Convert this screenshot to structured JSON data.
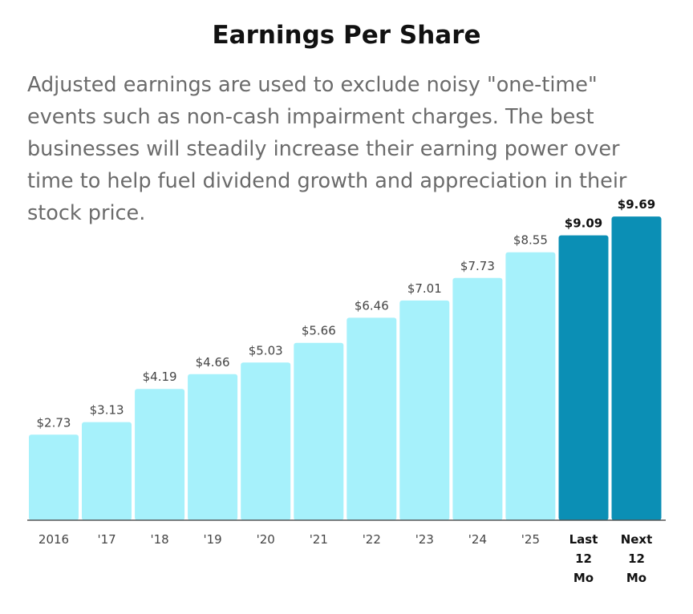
{
  "header": {
    "title": "Earnings Per Share",
    "description": "Adjusted earnings are used to exclude noisy \"one-time\" events such as non-cash impairment charges. The best businesses will steadily increase their earning power over time to help fuel dividend growth and appreciation in their stock price."
  },
  "chart_data": {
    "type": "bar",
    "title": "Earnings Per Share",
    "xlabel": "",
    "ylabel": "",
    "ylim": [
      0,
      10
    ],
    "grid": false,
    "categories": [
      "2016",
      "'17",
      "'18",
      "'19",
      "'20",
      "'21",
      "'22",
      "'23",
      "'24",
      "'25",
      "Last 12 Mo",
      "Next 12 Mo"
    ],
    "values": [
      2.73,
      3.13,
      4.19,
      4.66,
      5.03,
      5.66,
      6.46,
      7.01,
      7.73,
      8.55,
      9.09,
      9.69
    ],
    "data_labels": [
      "$2.73",
      "$3.13",
      "$4.19",
      "$4.66",
      "$5.03",
      "$5.66",
      "$6.46",
      "$7.01",
      "$7.73",
      "$8.55",
      "$9.09",
      "$9.69"
    ],
    "highlighted": [
      false,
      false,
      false,
      false,
      false,
      false,
      false,
      false,
      false,
      false,
      true,
      true
    ],
    "colors": {
      "normal": "#a6f1fb",
      "highlight": "#0b8fb5",
      "axis": "#555555"
    }
  }
}
